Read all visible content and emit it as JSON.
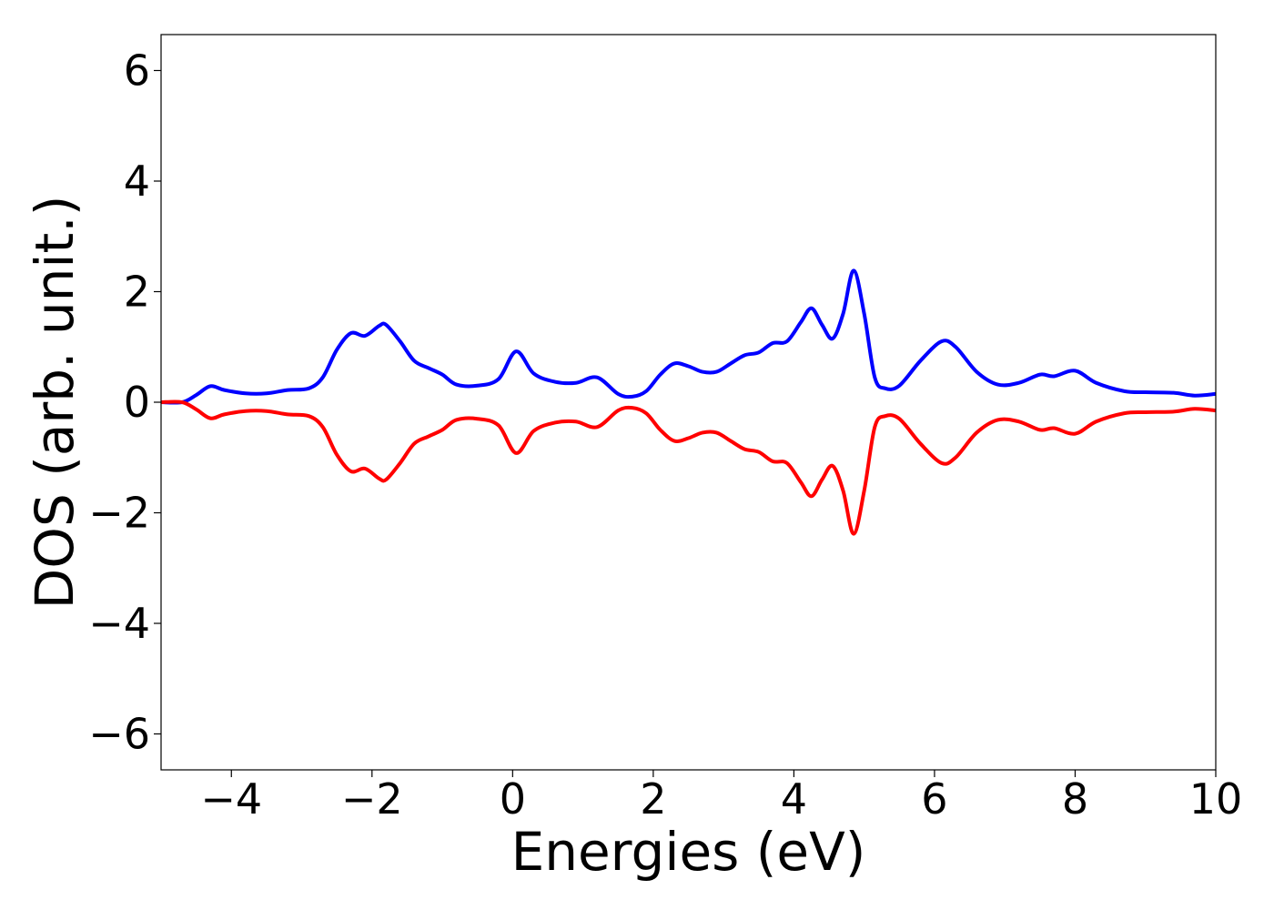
{
  "chart_data": {
    "type": "line",
    "title": "",
    "xlabel": "Energies (eV)",
    "ylabel": "DOS (arb. unit.)",
    "xlim": [
      -5,
      10
    ],
    "ylim": [
      -6.65,
      6.65
    ],
    "xticks": [
      -4,
      -2,
      0,
      2,
      4,
      6,
      8,
      10
    ],
    "xtick_labels": [
      "−4",
      "−2",
      "0",
      "2",
      "4",
      "6",
      "8",
      "10"
    ],
    "yticks": [
      6,
      4,
      2,
      0,
      -2,
      -4,
      -6
    ],
    "ytick_labels": [
      "6",
      "4",
      "2",
      "0",
      "−2",
      "−4",
      "−6"
    ],
    "grid": false,
    "legend": "none",
    "series": [
      {
        "color": "#0000ff",
        "x": [
          -5.0,
          -4.7,
          -4.5,
          -4.3,
          -4.1,
          -3.8,
          -3.5,
          -3.2,
          -2.9,
          -2.7,
          -2.5,
          -2.3,
          -2.1,
          -1.9,
          -1.8,
          -1.6,
          -1.4,
          -1.2,
          -1.0,
          -0.8,
          -0.5,
          -0.2,
          0.05,
          0.3,
          0.6,
          0.9,
          1.2,
          1.5,
          1.7,
          1.9,
          2.1,
          2.3,
          2.5,
          2.7,
          2.9,
          3.1,
          3.3,
          3.5,
          3.7,
          3.9,
          4.1,
          4.25,
          4.4,
          4.55,
          4.7,
          4.85,
          5.0,
          5.15,
          5.3,
          5.5,
          5.8,
          6.1,
          6.3,
          6.6,
          6.9,
          7.2,
          7.5,
          7.7,
          8.0,
          8.3,
          8.7,
          9.0,
          9.4,
          9.7,
          10.0
        ],
        "values": [
          0.0,
          0.0,
          0.13,
          0.29,
          0.22,
          0.16,
          0.16,
          0.22,
          0.25,
          0.45,
          0.95,
          1.25,
          1.2,
          1.38,
          1.4,
          1.1,
          0.75,
          0.62,
          0.5,
          0.32,
          0.3,
          0.42,
          0.92,
          0.52,
          0.37,
          0.35,
          0.45,
          0.15,
          0.1,
          0.2,
          0.5,
          0.7,
          0.65,
          0.55,
          0.55,
          0.7,
          0.85,
          0.9,
          1.07,
          1.1,
          1.45,
          1.7,
          1.4,
          1.15,
          1.6,
          2.38,
          1.6,
          0.45,
          0.25,
          0.3,
          0.75,
          1.1,
          1.0,
          0.55,
          0.32,
          0.35,
          0.5,
          0.47,
          0.57,
          0.35,
          0.2,
          0.18,
          0.17,
          0.12,
          0.15
        ]
      },
      {
        "color": "#ff0000",
        "x": [
          -5.0,
          -4.7,
          -4.5,
          -4.3,
          -4.1,
          -3.8,
          -3.5,
          -3.2,
          -2.9,
          -2.7,
          -2.5,
          -2.3,
          -2.1,
          -1.9,
          -1.8,
          -1.6,
          -1.4,
          -1.2,
          -1.0,
          -0.8,
          -0.5,
          -0.2,
          0.05,
          0.3,
          0.6,
          0.9,
          1.2,
          1.5,
          1.7,
          1.9,
          2.1,
          2.3,
          2.5,
          2.7,
          2.9,
          3.1,
          3.3,
          3.5,
          3.7,
          3.9,
          4.1,
          4.25,
          4.4,
          4.55,
          4.7,
          4.85,
          5.0,
          5.15,
          5.3,
          5.5,
          5.8,
          6.1,
          6.3,
          6.6,
          6.9,
          7.2,
          7.5,
          7.7,
          8.0,
          8.3,
          8.7,
          9.0,
          9.4,
          9.7,
          10.0
        ],
        "values": [
          0.0,
          0.0,
          -0.13,
          -0.29,
          -0.22,
          -0.16,
          -0.16,
          -0.22,
          -0.25,
          -0.45,
          -0.95,
          -1.25,
          -1.2,
          -1.38,
          -1.4,
          -1.1,
          -0.75,
          -0.62,
          -0.5,
          -0.32,
          -0.3,
          -0.42,
          -0.92,
          -0.52,
          -0.37,
          -0.35,
          -0.45,
          -0.15,
          -0.1,
          -0.2,
          -0.5,
          -0.7,
          -0.65,
          -0.55,
          -0.55,
          -0.7,
          -0.85,
          -0.9,
          -1.07,
          -1.1,
          -1.45,
          -1.7,
          -1.4,
          -1.15,
          -1.6,
          -2.38,
          -1.6,
          -0.45,
          -0.25,
          -0.3,
          -0.75,
          -1.1,
          -1.0,
          -0.55,
          -0.32,
          -0.35,
          -0.5,
          -0.47,
          -0.57,
          -0.35,
          -0.2,
          -0.18,
          -0.17,
          -0.12,
          -0.15
        ]
      }
    ]
  }
}
